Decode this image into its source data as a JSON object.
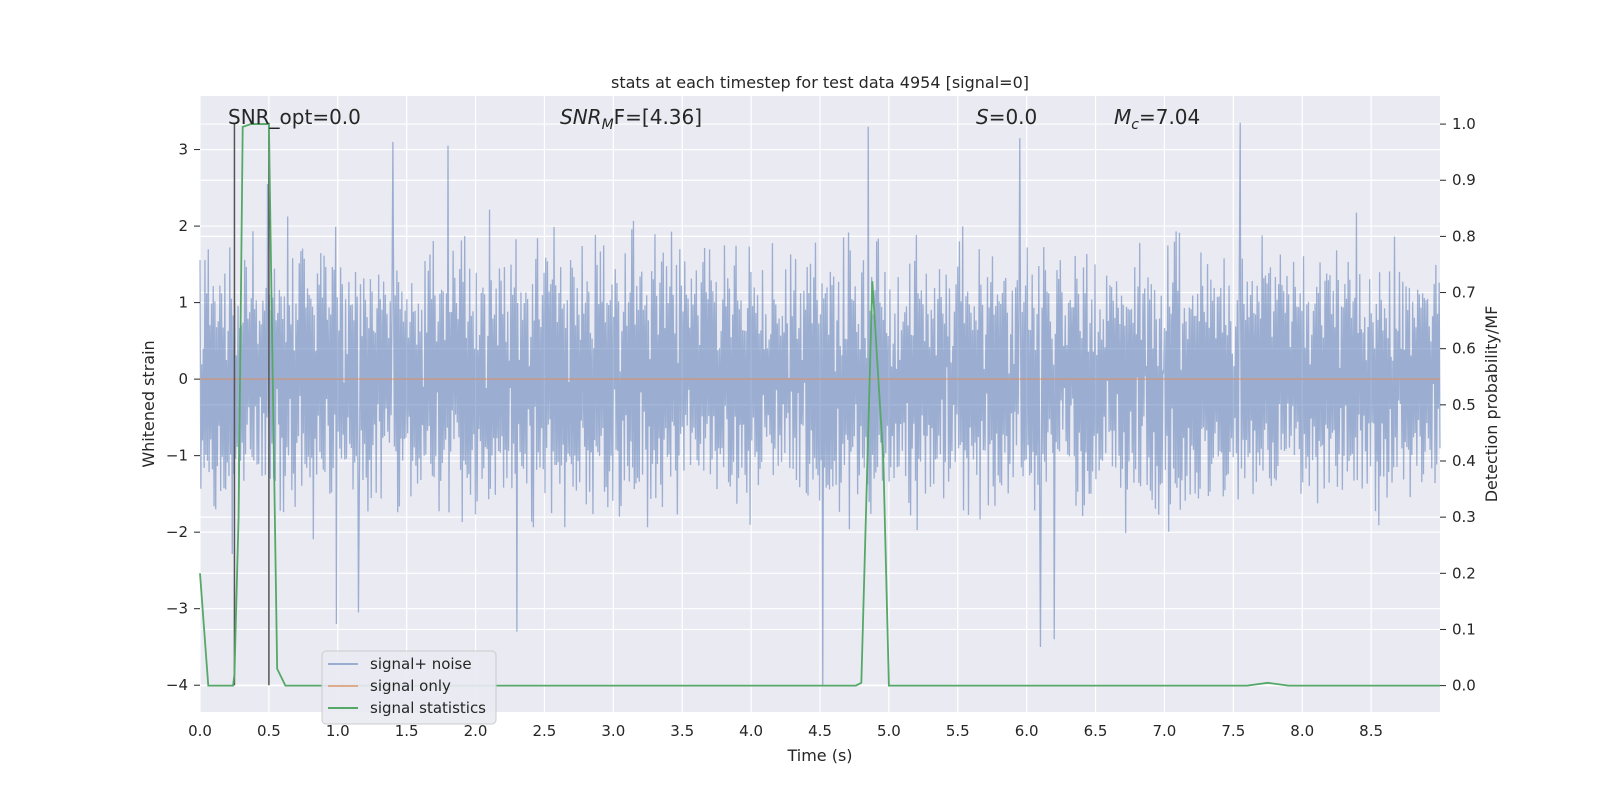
{
  "chart_data": {
    "type": "line",
    "title": "stats at each timestep for test data 4954 [signal=0]",
    "xlabel": "Time (s)",
    "ylabel": "Whitened strain",
    "y2label": "Detection probability/MF",
    "xlim": [
      0.0,
      9.0
    ],
    "ylim": [
      -4.35,
      3.7
    ],
    "y2lim": [
      -0.047,
      1.05
    ],
    "x_ticks": [
      0.0,
      0.5,
      1.0,
      1.5,
      2.0,
      2.5,
      3.0,
      3.5,
      4.0,
      4.5,
      5.0,
      5.5,
      6.0,
      6.5,
      7.0,
      7.5,
      8.0,
      8.5
    ],
    "x_tick_labels": [
      "0.0",
      "0.5",
      "1.0",
      "1.5",
      "2.0",
      "2.5",
      "3.0",
      "3.5",
      "4.0",
      "4.5",
      "5.0",
      "5.5",
      "6.0",
      "6.5",
      "7.0",
      "7.5",
      "8.0",
      "8.5"
    ],
    "y_ticks": [
      3,
      2,
      1,
      0,
      -1,
      -2,
      -3,
      -4
    ],
    "y_tick_labels": [
      "3",
      "2",
      "1",
      "0",
      "−1",
      "−2",
      "−3",
      "−4"
    ],
    "y2_ticks": [
      1.0,
      0.9,
      0.8,
      0.7,
      0.6,
      0.5,
      0.4,
      0.3,
      0.2,
      0.1,
      0.0
    ],
    "y2_tick_labels": [
      "1.0",
      "0.9",
      "0.8",
      "0.7",
      "0.6",
      "0.5",
      "0.4",
      "0.3",
      "0.2",
      "0.1",
      "0.0"
    ],
    "annotations": {
      "snr_opt": "SNR_opt=0.0",
      "snr_mf_prefix": "SNR",
      "snr_mf_sub": "M",
      "snr_mf_suffix": "F=[4.36]",
      "s_var": "S",
      "s_value": "=0.0",
      "mc_var": "M",
      "mc_sub": "c",
      "mc_value": "=7.04"
    },
    "legend": [
      "signal+ noise",
      "signal only",
      "signal statistics"
    ],
    "colors": {
      "noise": "#4c72b0",
      "signal": "#dd8452",
      "stats": "#55a868",
      "marker": "#555555",
      "axes_bg": "#eaeaf2",
      "grid": "#ffffff"
    },
    "series": [
      {
        "name": "signal+ noise",
        "axis": "left",
        "description_type": "noise",
        "amplitude_envelope": [
          2.0,
          -2.0
        ],
        "notable_peaks": [
          {
            "x": 0.49,
            "y": 2.55
          },
          {
            "x": 1.4,
            "y": 3.1
          },
          {
            "x": 1.8,
            "y": 3.05
          },
          {
            "x": 4.85,
            "y": 3.3
          },
          {
            "x": 5.95,
            "y": 3.15
          },
          {
            "x": 7.55,
            "y": 3.35
          },
          {
            "x": 0.99,
            "y": -3.2
          },
          {
            "x": 1.15,
            "y": -3.05
          },
          {
            "x": 2.3,
            "y": -3.3
          },
          {
            "x": 4.52,
            "y": -4.0
          },
          {
            "x": 6.1,
            "y": -3.5
          },
          {
            "x": 6.2,
            "y": -3.4
          }
        ]
      },
      {
        "name": "signal only",
        "axis": "left",
        "x": [
          0.0,
          9.0
        ],
        "y": [
          0.0,
          0.0
        ]
      },
      {
        "name": "signal statistics",
        "axis": "right",
        "x": [
          0.0,
          0.06,
          0.24,
          0.25,
          0.28,
          0.31,
          0.37,
          0.5,
          0.56,
          0.62,
          4.76,
          4.8,
          4.88,
          4.96,
          5.0,
          7.6,
          7.75,
          7.9,
          9.0
        ],
        "y": [
          0.2,
          0.0,
          0.0,
          0.02,
          0.3,
          0.995,
          1.0,
          1.0,
          0.03,
          0.0,
          0.0,
          0.005,
          0.72,
          0.4,
          0.0,
          0.0,
          0.005,
          0.0,
          0.0
        ]
      }
    ],
    "vertical_markers": [
      0.25,
      0.5
    ]
  }
}
